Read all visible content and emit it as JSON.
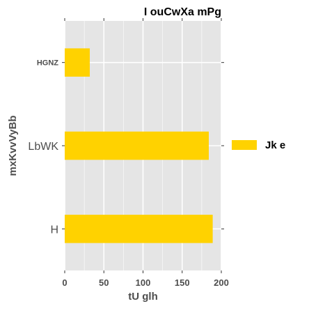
{
  "chart_data": {
    "type": "bar",
    "orientation": "horizontal",
    "title": "I  ouCwXa mPg",
    "xlabel": "tU  glh",
    "ylabel": "mxKvvVyBb",
    "categories": [
      "HGNZ",
      "LbWK",
      "H"
    ],
    "series": [
      {
        "name": "Jk e",
        "values": [
          32,
          184,
          189
        ]
      }
    ],
    "xlim": [
      0,
      200
    ],
    "xticks": [
      "0",
      "50",
      "100",
      "150",
      "200"
    ],
    "grid": true,
    "legend": {
      "position": "right"
    },
    "colors": {
      "bar": "#FFD200",
      "panel_background": "#E5E5E5",
      "grid": "#FFFFFF",
      "text": "#4D4D4D",
      "title": "#000000"
    }
  }
}
